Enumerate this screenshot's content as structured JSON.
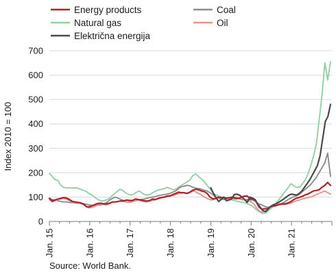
{
  "chart_data": {
    "type": "line",
    "ylabel": "Index 2010 = 100",
    "ylim": [
      0,
      700
    ],
    "yticks": [
      "0",
      "100",
      "200",
      "300",
      "400",
      "500",
      "600",
      "700"
    ],
    "xtick_labels": [
      "Jan. 15",
      "Jan. 16",
      "Jan. 17",
      "Jan. 18",
      "Jan. 19",
      "Jan. 20",
      "Jan. 21"
    ],
    "x_start": "2015-01",
    "legend_position": "top",
    "grid": "horizontal",
    "series": [
      {
        "name": "Energy products",
        "color": "#b0202a",
        "values": [
          95,
          83,
          88,
          92,
          95,
          98,
          96,
          90,
          82,
          80,
          78,
          76,
          70,
          60,
          60,
          65,
          70,
          74,
          75,
          72,
          72,
          75,
          80,
          80,
          82,
          84,
          85,
          88,
          86,
          86,
          92,
          90,
          88,
          85,
          84,
          86,
          92,
          90,
          95,
          98,
          100,
          104,
          105,
          110,
          115,
          120,
          118,
          118,
          115,
          120,
          128,
          132,
          130,
          125,
          122,
          115,
          100,
          92,
          95,
          100,
          98,
          97,
          96,
          98,
          100,
          95,
          94,
          100,
          104,
          104,
          92,
          92,
          84,
          60,
          50,
          52,
          52,
          60,
          63,
          65,
          70,
          72,
          72,
          75,
          80,
          88,
          95,
          98,
          102,
          108,
          112,
          118,
          125,
          127,
          130,
          140,
          148,
          160,
          148
        ]
      },
      {
        "name": "Coal",
        "color": "#8c8c8c",
        "values": [
          95,
          90,
          88,
          85,
          82,
          80,
          80,
          78,
          77,
          76,
          75,
          74,
          73,
          70,
          68,
          66,
          66,
          67,
          68,
          72,
          78,
          88,
          95,
          100,
          95,
          90,
          85,
          80,
          80,
          82,
          85,
          88,
          90,
          92,
          95,
          98,
          100,
          102,
          106,
          108,
          110,
          112,
          115,
          120,
          125,
          135,
          142,
          145,
          148,
          146,
          140,
          137,
          135,
          132,
          128,
          125,
          118,
          110,
          100,
          95,
          92,
          90,
          92,
          95,
          94,
          92,
          95,
          90,
          88,
          90,
          88,
          88,
          80,
          72,
          68,
          62,
          58,
          60,
          62,
          65,
          68,
          74,
          80,
          88,
          95,
          100,
          105,
          110,
          120,
          130,
          140,
          150,
          165,
          180,
          200,
          220,
          240,
          280,
          185
        ]
      },
      {
        "name": "Natural gas",
        "color": "#96cfa6",
        "values": [
          198,
          185,
          172,
          168,
          150,
          140,
          138,
          138,
          137,
          138,
          137,
          132,
          128,
          124,
          115,
          110,
          100,
          92,
          86,
          84,
          87,
          92,
          102,
          112,
          122,
          132,
          128,
          118,
          112,
          108,
          112,
          120,
          125,
          116,
          110,
          108,
          112,
          120,
          125,
          130,
          132,
          135,
          140,
          135,
          130,
          132,
          142,
          148,
          155,
          162,
          170,
          188,
          195,
          185,
          175,
          165,
          150,
          135,
          120,
          110,
          105,
          100,
          95,
          92,
          90,
          88,
          85,
          82,
          80,
          78,
          75,
          70,
          65,
          55,
          45,
          38,
          32,
          35,
          45,
          55,
          68,
          80,
          95,
          110,
          125,
          140,
          155,
          145,
          140,
          140,
          155,
          170,
          195,
          230,
          270,
          320,
          420,
          520,
          650,
          580,
          655
        ]
      },
      {
        "name": "Oil",
        "color": "#e8938a",
        "values": [
          90,
          80,
          85,
          90,
          92,
          95,
          92,
          85,
          80,
          78,
          76,
          74,
          70,
          62,
          55,
          58,
          62,
          68,
          72,
          70,
          68,
          72,
          78,
          80,
          82,
          84,
          82,
          80,
          78,
          80,
          85,
          88,
          85,
          82,
          80,
          82,
          85,
          88,
          92,
          95,
          98,
          100,
          102,
          105,
          108,
          112,
          115,
          118,
          115,
          118,
          122,
          125,
          118,
          112,
          105,
          98,
          92,
          88,
          90,
          95,
          98,
          96,
          95,
          92,
          94,
          98,
          100,
          96,
          92,
          88,
          85,
          80,
          72,
          55,
          42,
          38,
          42,
          52,
          60,
          62,
          65,
          68,
          70,
          70,
          72,
          75,
          80,
          85,
          88,
          92,
          95,
          98,
          100,
          105,
          110,
          115,
          120,
          125,
          118,
          112
        ]
      },
      {
        "name": "Električna energija",
        "color": "#4a4a4a",
        "start_index": 48,
        "values": [
          138,
          115,
          98,
          82,
          90,
          100,
          85,
          88,
          92,
          110,
          112,
          108,
          100,
          90,
          78,
          100,
          96,
          90,
          72,
          58,
          45,
          40,
          50,
          62,
          68,
          72,
          78,
          85,
          92,
          100,
          108,
          112,
          110,
          108,
          115,
          125,
          140,
          155,
          170,
          190,
          210,
          230,
          270,
          340,
          410,
          430,
          480
        ]
      }
    ]
  }
}
